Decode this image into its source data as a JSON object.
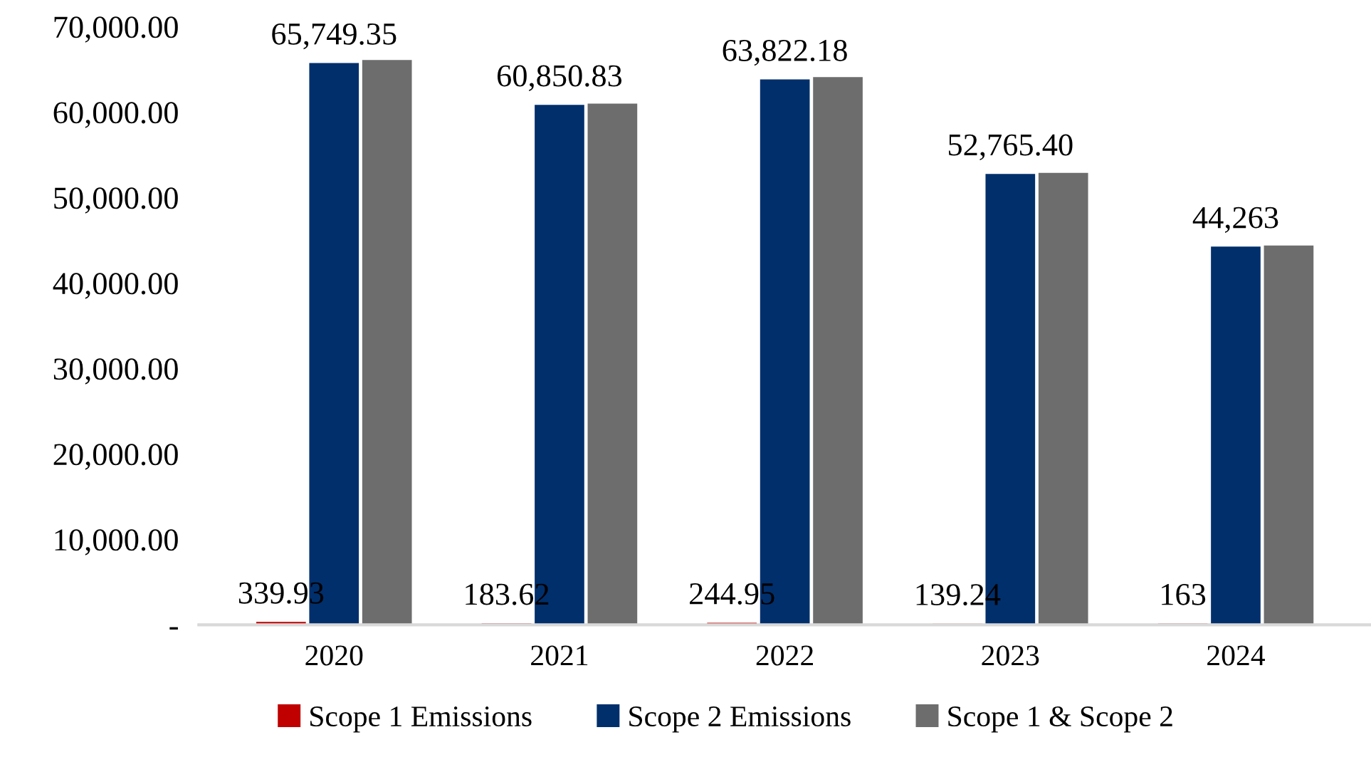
{
  "chart_data": {
    "type": "bar",
    "categories": [
      "2020",
      "2021",
      "2022",
      "2023",
      "2024"
    ],
    "series": [
      {
        "name": "Scope 1 Emissions",
        "color": "#c00000",
        "values": [
          339.93,
          183.62,
          244.95,
          139.24,
          163
        ],
        "value_labels": [
          "339.93",
          "183.62",
          "244.95",
          "139.24",
          "163"
        ]
      },
      {
        "name": "Scope 2 Emissions",
        "color": "#002f6c",
        "values": [
          65749.35,
          60850.83,
          63822.18,
          52765.4,
          44263
        ],
        "value_labels": [
          "65,749.35",
          "60,850.83",
          "63,822.18",
          "52,765.40",
          "44,263"
        ]
      },
      {
        "name": "Scope 1 & Scope 2",
        "color": "#6d6d6d",
        "values": [
          66100,
          61000,
          64100,
          52900,
          44400
        ]
      }
    ],
    "ylim": [
      0,
      70000
    ],
    "yticks": [
      {
        "value": 0,
        "label": "-"
      },
      {
        "value": 10000,
        "label": "10,000.00"
      },
      {
        "value": 20000,
        "label": "20,000.00"
      },
      {
        "value": 30000,
        "label": "30,000.00"
      },
      {
        "value": 40000,
        "label": "40,000.00"
      },
      {
        "value": 50000,
        "label": "50,000.00"
      },
      {
        "value": 60000,
        "label": "60,000.00"
      },
      {
        "value": 70000,
        "label": "70,000.00"
      }
    ],
    "grid": false,
    "legend": "bottom"
  }
}
